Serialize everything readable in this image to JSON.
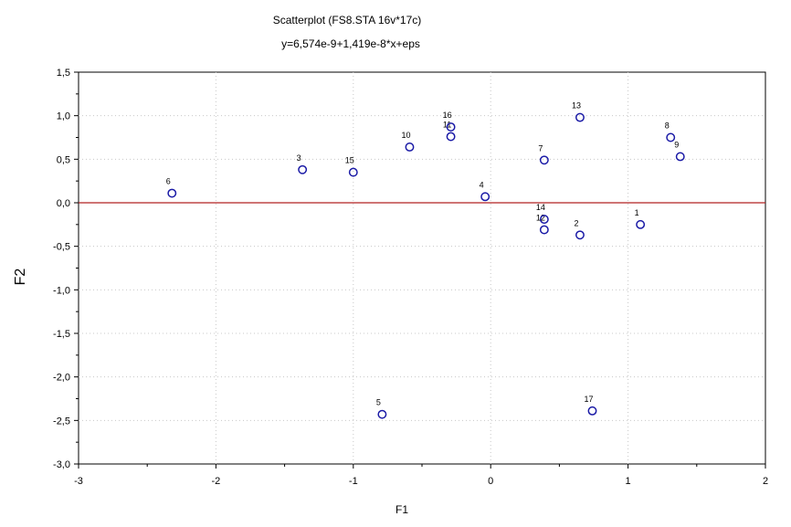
{
  "chart_data": {
    "type": "scatter",
    "title": "Scatterplot (FS8.STA 16v*17c)",
    "subtitle": "y=6,574e-9+1,419e-8*x+eps",
    "xlabel": "F1",
    "ylabel": "F2",
    "xlim": [
      -3,
      2
    ],
    "ylim": [
      -3,
      1.5
    ],
    "xticks": [
      -3,
      -2,
      -1,
      0,
      1,
      2
    ],
    "xtick_labels": [
      "-3",
      "-2",
      "-1",
      "0",
      "1",
      "2"
    ],
    "yticks": [
      1.5,
      1.0,
      0.5,
      0.0,
      -0.5,
      -1.0,
      -1.5,
      -2.0,
      -2.5,
      -3.0
    ],
    "ytick_labels": [
      "1,5",
      "1,0",
      "0,5",
      "0,0",
      "-0,5",
      "-1,0",
      "-1,5",
      "-2,0",
      "-2,5",
      "-3,0"
    ],
    "grid": true,
    "reference_line_y": 0.0,
    "point_color": "#1a1aa6",
    "line_color": "#b22222",
    "points": [
      {
        "label": "1",
        "x": 1.09,
        "y": -0.25
      },
      {
        "label": "2",
        "x": 0.65,
        "y": -0.37
      },
      {
        "label": "3",
        "x": -1.37,
        "y": 0.38
      },
      {
        "label": "4",
        "x": -0.04,
        "y": 0.07
      },
      {
        "label": "5",
        "x": -0.79,
        "y": -2.43
      },
      {
        "label": "6",
        "x": -2.32,
        "y": 0.11
      },
      {
        "label": "7",
        "x": 0.39,
        "y": 0.49
      },
      {
        "label": "8",
        "x": 1.31,
        "y": 0.75
      },
      {
        "label": "9",
        "x": 1.38,
        "y": 0.53
      },
      {
        "label": "10",
        "x": -0.59,
        "y": 0.64
      },
      {
        "label": "11",
        "x": -0.29,
        "y": 0.76
      },
      {
        "label": "12",
        "x": 0.39,
        "y": -0.31
      },
      {
        "label": "13",
        "x": 0.65,
        "y": 0.98
      },
      {
        "label": "14",
        "x": 0.39,
        "y": -0.19
      },
      {
        "label": "15",
        "x": -1.0,
        "y": 0.35
      },
      {
        "label": "16",
        "x": -0.29,
        "y": 0.87
      },
      {
        "label": "17",
        "x": 0.74,
        "y": -2.39
      }
    ]
  }
}
